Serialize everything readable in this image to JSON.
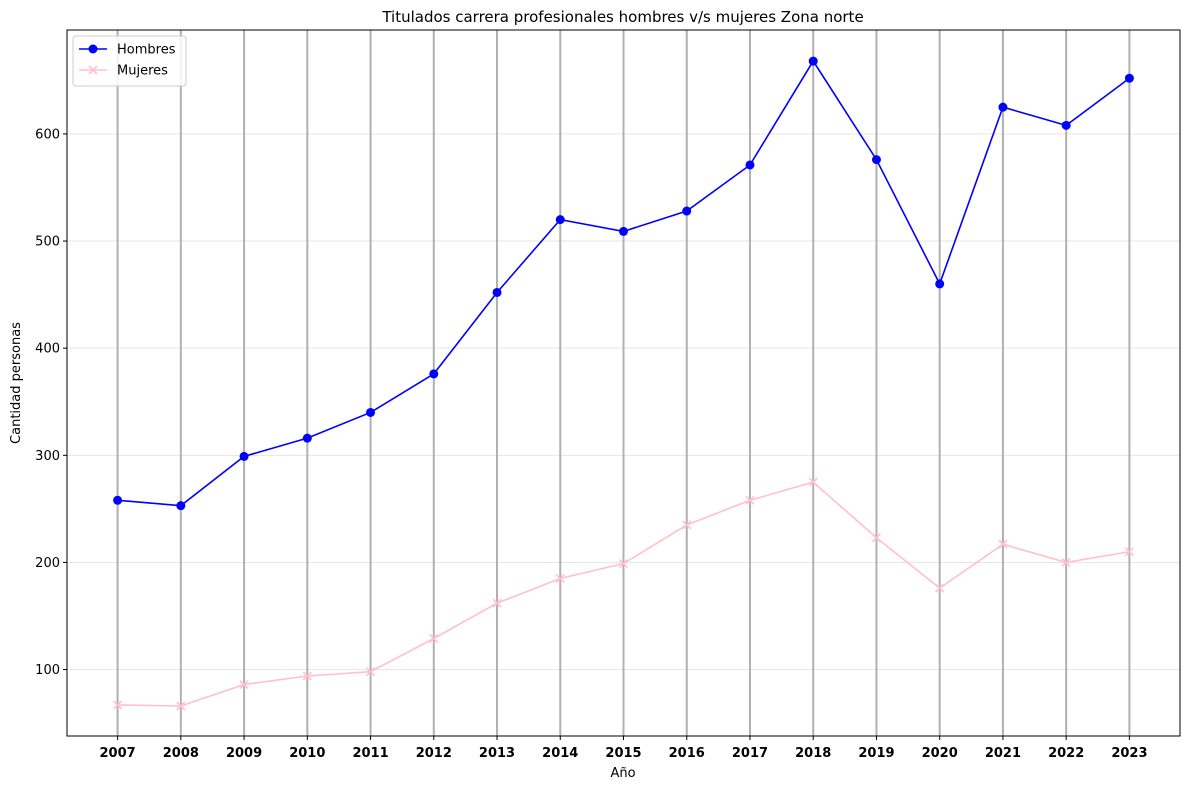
{
  "chart_data": {
    "type": "line",
    "title": "Titulados carrera profesionales hombres v/s mujeres Zona norte",
    "xlabel": "Año",
    "ylabel": "Cantidad personas",
    "x": [
      2007,
      2008,
      2009,
      2010,
      2011,
      2012,
      2013,
      2014,
      2015,
      2016,
      2017,
      2018,
      2019,
      2020,
      2021,
      2022,
      2023
    ],
    "xlim": [
      2006.2,
      2023.8
    ],
    "ylim": [
      38,
      697
    ],
    "yticks": [
      100,
      200,
      300,
      400,
      500,
      600
    ],
    "grid": true,
    "legend_position": "top-left",
    "series": [
      {
        "name": "Hombres",
        "color": "#0000ff",
        "marker": "circle",
        "values": [
          258,
          253,
          299,
          316,
          340,
          376,
          452,
          520,
          509,
          528,
          571,
          668,
          576,
          460,
          625,
          608,
          652
        ]
      },
      {
        "name": "Mujeres",
        "color": "#ffc0cb",
        "marker": "x",
        "values": [
          67,
          66,
          86,
          94,
          98,
          129,
          162,
          185,
          199,
          235,
          258,
          275,
          223,
          176,
          217,
          200,
          210
        ]
      }
    ]
  }
}
